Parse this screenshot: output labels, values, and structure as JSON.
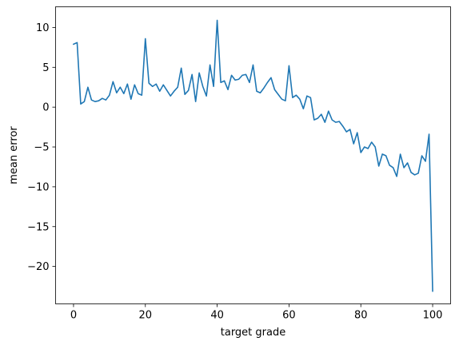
{
  "chart_data": {
    "type": "line",
    "title": "",
    "xlabel": "target grade",
    "ylabel": "mean error",
    "xlim": [
      -5,
      105
    ],
    "ylim": [
      -24.7,
      12.6
    ],
    "xticks": [
      0,
      20,
      40,
      60,
      80,
      100
    ],
    "yticks": [
      10,
      5,
      0,
      -5,
      -10,
      -15,
      -20
    ],
    "ytick_labels": [
      "10",
      "5",
      "0",
      "−5",
      "−10",
      "−15",
      "−20"
    ],
    "grid": false,
    "legend": "none",
    "line_color": "#1f77b4",
    "series": [
      {
        "x": [
          0,
          1,
          2,
          3,
          4,
          5,
          6,
          7,
          8,
          9,
          10,
          11,
          12,
          13,
          14,
          15,
          16,
          17,
          18,
          19,
          20,
          21,
          22,
          23,
          24,
          25,
          26,
          27,
          28,
          29,
          30,
          31,
          32,
          33,
          34,
          35,
          36,
          37,
          38,
          39,
          40,
          41,
          42,
          43,
          44,
          45,
          46,
          47,
          48,
          49,
          50,
          51,
          52,
          53,
          54,
          55,
          56,
          57,
          58,
          59,
          60,
          61,
          62,
          63,
          64,
          65,
          66,
          67,
          68,
          69,
          70,
          71,
          72,
          73,
          74,
          75,
          76,
          77,
          78,
          79,
          80,
          81,
          82,
          83,
          84,
          85,
          86,
          87,
          88,
          89,
          90,
          91,
          92,
          93,
          94,
          95,
          96,
          97,
          98,
          99,
          100
        ],
        "values": [
          7.9,
          8.1,
          0.4,
          0.7,
          2.5,
          0.9,
          0.7,
          0.8,
          1.1,
          0.9,
          1.5,
          3.2,
          1.8,
          2.5,
          1.7,
          2.9,
          1.0,
          2.8,
          1.7,
          1.5,
          8.6,
          3.0,
          2.6,
          2.9,
          2.0,
          2.8,
          2.1,
          1.4,
          2.0,
          2.5,
          4.9,
          1.6,
          2.1,
          4.1,
          0.7,
          4.3,
          2.6,
          1.4,
          5.3,
          2.6,
          10.9,
          3.1,
          3.3,
          2.2,
          4.0,
          3.4,
          3.5,
          4.0,
          4.1,
          3.1,
          5.3,
          2.0,
          1.8,
          2.4,
          3.1,
          3.7,
          2.2,
          1.6,
          1.0,
          0.8,
          5.2,
          1.2,
          1.5,
          1.0,
          -0.2,
          1.4,
          1.2,
          -1.6,
          -1.4,
          -0.9,
          -1.9,
          -0.5,
          -1.6,
          -1.9,
          -1.8,
          -2.4,
          -3.1,
          -2.8,
          -4.6,
          -3.2,
          -5.7,
          -5.0,
          -5.2,
          -4.4,
          -5.0,
          -7.4,
          -5.9,
          -6.1,
          -7.3,
          -7.6,
          -8.7,
          -5.9,
          -7.6,
          -7.0,
          -8.2,
          -8.5,
          -8.3,
          -6.1,
          -6.8,
          -3.4,
          -23.1
        ]
      }
    ]
  }
}
